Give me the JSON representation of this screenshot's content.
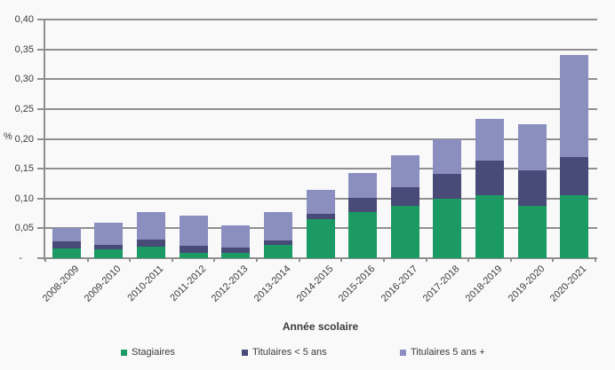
{
  "chart_data": {
    "type": "bar",
    "stacked": true,
    "title": "",
    "xlabel": "Année scolaire",
    "ylabel": "%",
    "ylim": [
      0,
      0.4
    ],
    "ytick_step": 0.05,
    "ytick_labels": [
      "0,40",
      "0,35",
      "0,30",
      "0,25",
      "0,20",
      "0,15",
      "0,10",
      "0,05",
      "-"
    ],
    "grid": true,
    "legend_position": "bottom",
    "categories": [
      "2008-2009",
      "2009-2010",
      "2010-2011",
      "2011-2012",
      "2012-2013",
      "2013-2014",
      "2014-2015",
      "2015-2016",
      "2016-2017",
      "2017-2018",
      "2018-2019",
      "2019-2020",
      "2020-2021"
    ],
    "series": [
      {
        "name": "Stagiaires",
        "color": "#1B9A63",
        "values": [
          0.017,
          0.015,
          0.02,
          0.009,
          0.009,
          0.023,
          0.065,
          0.077,
          0.088,
          0.1,
          0.105,
          0.088,
          0.105
        ]
      },
      {
        "name": "Titulaires < 5 ans",
        "color": "#484A77",
        "values": [
          0.011,
          0.008,
          0.011,
          0.012,
          0.009,
          0.006,
          0.01,
          0.024,
          0.031,
          0.042,
          0.058,
          0.059,
          0.065
        ]
      },
      {
        "name": "Titulaires 5 ans +",
        "color": "#8B8FC0",
        "values": [
          0.022,
          0.036,
          0.047,
          0.05,
          0.037,
          0.048,
          0.04,
          0.042,
          0.054,
          0.058,
          0.07,
          0.078,
          0.17
        ]
      }
    ],
    "axis_color": "#8f8f8f",
    "text_color": "#3c3c3c"
  }
}
